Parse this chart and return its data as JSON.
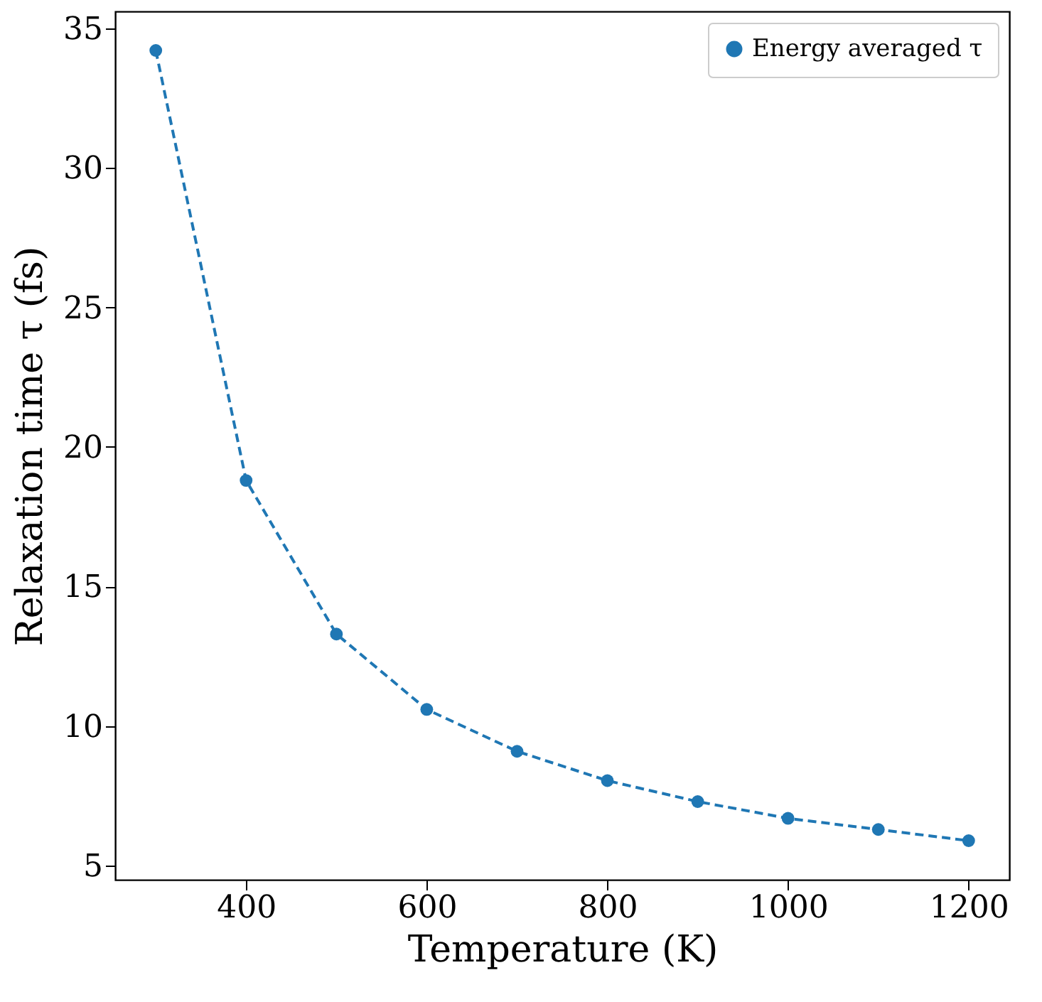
{
  "chart_data": {
    "type": "line",
    "xlabel": "Temperature (K)",
    "ylabel": "Relaxation time τ   (fs)",
    "x": [
      300,
      400,
      500,
      600,
      700,
      800,
      900,
      1000,
      1100,
      1200
    ],
    "series": [
      {
        "name": "Energy averaged τ",
        "color": "#1f77b4",
        "values": [
          34.2,
          18.8,
          13.3,
          10.6,
          9.1,
          8.05,
          7.3,
          6.7,
          6.3,
          5.9
        ]
      }
    ],
    "xlim": [
      255,
      1245
    ],
    "ylim": [
      4.5,
      35.6
    ],
    "xticks": [
      400,
      600,
      800,
      1000,
      1200
    ],
    "yticks": [
      5,
      10,
      15,
      20,
      25,
      30,
      35
    ],
    "legend": "top right",
    "marker": "circle",
    "line_style": "dashed",
    "grid": false
  }
}
